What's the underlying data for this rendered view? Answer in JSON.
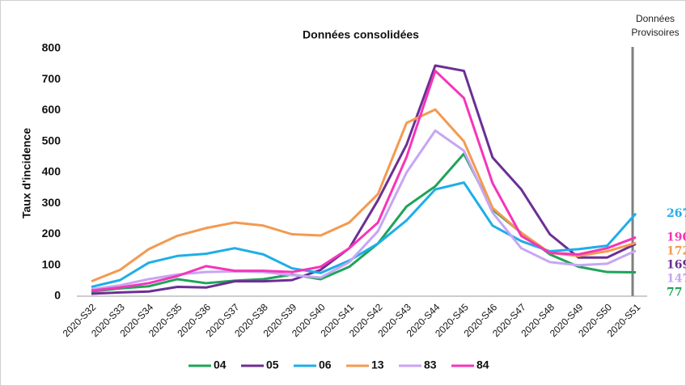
{
  "chart_data": {
    "type": "line",
    "title": "Données consolidées",
    "y_label": "Taux d'incidence",
    "annotation": [
      "Données",
      "Provisoires"
    ],
    "categories": [
      "2020-S32",
      "2020-S33",
      "2020-S34",
      "2020-S35",
      "2020-S36",
      "2020-S37",
      "2020-S38",
      "2020-S39",
      "2020-S40",
      "2020-S41",
      "2020-S42",
      "2020-S43",
      "2020-S44",
      "2020-S45",
      "2020-S46",
      "2020-S47",
      "2020-S48",
      "2020-S49",
      "2020-S50",
      "2020-S51"
    ],
    "ylim": [
      0,
      800
    ],
    "yticks": [
      0,
      100,
      200,
      300,
      400,
      500,
      600,
      700,
      800
    ],
    "grid": false,
    "legend": "bottom",
    "series": [
      {
        "name": "04",
        "color": "#1fa35a",
        "values": [
          15,
          25,
          32,
          55,
          42,
          50,
          55,
          70,
          55,
          95,
          170,
          290,
          355,
          460,
          280,
          205,
          135,
          95,
          78,
          77
        ]
      },
      {
        "name": "05",
        "color": "#6b2f94",
        "values": [
          8,
          12,
          15,
          30,
          28,
          48,
          48,
          52,
          85,
          155,
          310,
          490,
          745,
          728,
          448,
          345,
          200,
          125,
          125,
          169
        ]
      },
      {
        "name": "06",
        "color": "#1eaee8",
        "values": [
          30,
          52,
          108,
          130,
          137,
          155,
          135,
          90,
          75,
          115,
          170,
          245,
          345,
          367,
          228,
          178,
          145,
          152,
          163,
          267
        ]
      },
      {
        "name": "13",
        "color": "#f39a50",
        "values": [
          48,
          85,
          152,
          195,
          220,
          238,
          228,
          200,
          196,
          238,
          330,
          560,
          603,
          500,
          285,
          205,
          140,
          130,
          145,
          172
        ]
      },
      {
        "name": "83",
        "color": "#c7a6f2",
        "values": [
          22,
          35,
          55,
          70,
          78,
          80,
          78,
          68,
          60,
          110,
          210,
          400,
          535,
          470,
          270,
          155,
          110,
          100,
          105,
          147
        ]
      },
      {
        "name": "84",
        "color": "#f535b8",
        "values": [
          18,
          28,
          42,
          65,
          97,
          82,
          82,
          78,
          95,
          155,
          238,
          450,
          728,
          640,
          365,
          195,
          140,
          135,
          155,
          190
        ]
      }
    ]
  }
}
